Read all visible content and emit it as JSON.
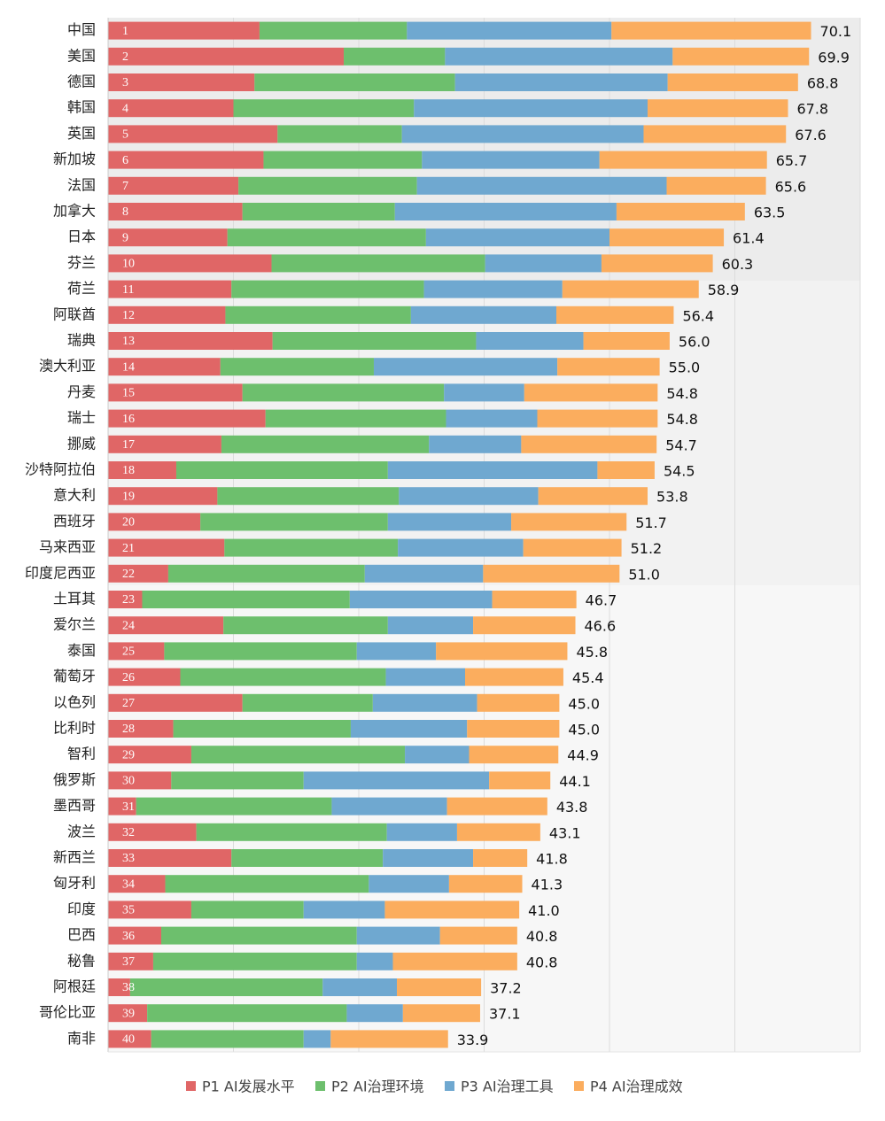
{
  "chart_data": {
    "type": "stacked-barh",
    "categories": [
      "中国",
      "美国",
      "德国",
      "韩国",
      "英国",
      "新加坡",
      "法国",
      "加拿大",
      "日本",
      "芬兰",
      "荷兰",
      "阿联酋",
      "瑞典",
      "澳大利亚",
      "丹麦",
      "瑞士",
      "挪威",
      "沙特阿拉伯",
      "意大利",
      "西班牙",
      "马来西亚",
      "印度尼西亚",
      "土耳其",
      "爱尔兰",
      "泰国",
      "葡萄牙",
      "以色列",
      "比利时",
      "智利",
      "俄罗斯",
      "墨西哥",
      "波兰",
      "新西兰",
      "匈牙利",
      "印度",
      "巴西",
      "秘鲁",
      "阿根廷",
      "哥伦比亚",
      "南非"
    ],
    "ranks": [
      1,
      2,
      3,
      4,
      5,
      6,
      7,
      8,
      9,
      10,
      11,
      12,
      13,
      14,
      15,
      16,
      17,
      18,
      19,
      20,
      21,
      22,
      23,
      24,
      25,
      26,
      27,
      28,
      29,
      30,
      31,
      32,
      33,
      34,
      35,
      36,
      37,
      38,
      39,
      40
    ],
    "series": [
      {
        "name": "P1 AI发展水平",
        "color": "#e06666",
        "values": [
          15.1,
          23.5,
          14.6,
          12.5,
          16.9,
          15.5,
          13.0,
          13.4,
          11.9,
          16.3,
          12.3,
          11.7,
          16.4,
          11.2,
          13.4,
          15.7,
          11.3,
          6.8,
          10.9,
          9.2,
          11.6,
          6.0,
          3.4,
          11.5,
          5.6,
          7.2,
          13.4,
          6.5,
          8.3,
          6.3,
          2.8,
          8.8,
          12.3,
          5.7,
          8.3,
          5.3,
          4.5,
          2.2,
          3.9,
          4.3
        ]
      },
      {
        "name": "P2 AI治理环境",
        "color": "#6dbf6d",
        "values": [
          14.7,
          10.1,
          20.0,
          18.0,
          12.4,
          15.8,
          17.8,
          15.2,
          19.8,
          21.3,
          19.2,
          18.5,
          20.3,
          15.3,
          20.1,
          18.0,
          20.7,
          21.1,
          18.1,
          18.7,
          17.3,
          19.6,
          20.7,
          16.4,
          19.2,
          20.5,
          13.0,
          17.7,
          21.3,
          13.2,
          19.5,
          19.0,
          15.1,
          20.3,
          11.2,
          19.5,
          20.3,
          19.2,
          19.9,
          15.2
        ]
      },
      {
        "name": "P3 AI治理工具",
        "color": "#6fa8d0",
        "values": [
          20.4,
          22.7,
          21.2,
          23.3,
          24.1,
          17.7,
          24.9,
          22.1,
          18.3,
          11.6,
          13.8,
          14.5,
          10.7,
          18.3,
          8.0,
          9.1,
          9.2,
          20.9,
          13.9,
          12.3,
          12.5,
          11.8,
          14.2,
          8.5,
          7.9,
          7.9,
          10.4,
          11.6,
          6.4,
          18.5,
          11.5,
          7.0,
          9.0,
          8.0,
          8.1,
          8.3,
          3.6,
          7.4,
          5.6,
          2.7
        ]
      },
      {
        "name": "P4 AI治理成效",
        "color": "#fbad5e",
        "values": [
          19.9,
          13.6,
          13.0,
          14.0,
          14.2,
          16.7,
          9.9,
          12.8,
          11.4,
          11.1,
          13.6,
          11.7,
          8.6,
          10.2,
          13.3,
          12.0,
          13.5,
          5.7,
          10.9,
          11.5,
          9.8,
          13.6,
          8.4,
          10.2,
          13.1,
          9.8,
          8.2,
          9.2,
          8.9,
          6.1,
          10.0,
          8.3,
          5.4,
          7.3,
          13.4,
          7.7,
          12.4,
          8.4,
          7.7,
          11.7
        ]
      }
    ],
    "totals": {
      "values": [
        70.1,
        69.9,
        68.8,
        67.8,
        67.6,
        65.7,
        65.6,
        63.5,
        61.4,
        60.3,
        58.9,
        56.4,
        56.0,
        55.0,
        54.8,
        54.8,
        54.7,
        54.5,
        53.8,
        51.7,
        51.2,
        51.0,
        46.7,
        46.6,
        45.8,
        45.4,
        45.0,
        45.0,
        44.9,
        44.1,
        43.8,
        43.1,
        41.8,
        41.3,
        41.0,
        40.8,
        40.8,
        37.2,
        37.1,
        33.9
      ],
      "value_labels": [
        "70.1",
        "69.9",
        "68.8",
        "67.8",
        "67.6",
        "65.7",
        "65.6",
        "63.5",
        "61.4",
        "60.3",
        "58.9",
        "56.4",
        "56.0",
        "55.0",
        "54.8",
        "54.8",
        "54.7",
        "54.5",
        "53.8",
        "51.7",
        "51.2",
        "51.0",
        "46.7",
        "46.6",
        "45.8",
        "45.4",
        "45.0",
        "45.0",
        "44.9",
        "44.1",
        "43.8",
        "43.1",
        "41.8",
        "41.3",
        "41.0",
        "40.8",
        "40.8",
        "37.2",
        "37.1",
        "33.9"
      ]
    },
    "xlim": [
      0,
      75
    ],
    "xticks": [
      0,
      12.5,
      25,
      37.5,
      50,
      62.5,
      75
    ],
    "grid": true
  }
}
